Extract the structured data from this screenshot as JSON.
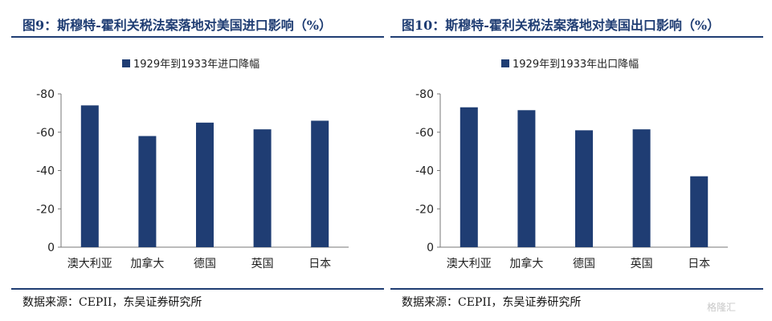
{
  "chart_data": [
    {
      "type": "bar",
      "title": "图9：斯穆特-霍利关税法案落地对美国进口影响（%）",
      "categories": [
        "澳大利亚",
        "加拿大",
        "德国",
        "英国",
        "日本"
      ],
      "series": [
        {
          "name": "1929年到1933年进口降幅",
          "values": [
            -74,
            -58,
            -65,
            -61.5,
            -66
          ]
        }
      ],
      "yticks": [
        "-80",
        "-60",
        "-40",
        "-20",
        "0"
      ],
      "ylim": [
        -80,
        0
      ],
      "y_inverted": true,
      "bar_color": "#1f3d73",
      "source": "数据来源：CEPII，东吴证券研究所"
    },
    {
      "type": "bar",
      "title": "图10：斯穆特-霍利关税法案落地对美国出口影响（%）",
      "categories": [
        "澳大利亚",
        "加拿大",
        "德国",
        "英国",
        "日本"
      ],
      "series": [
        {
          "name": "1929年到1933年出口降幅",
          "values": [
            -73,
            -71.5,
            -61,
            -61.5,
            -37
          ]
        }
      ],
      "yticks": [
        "-80",
        "-60",
        "-40",
        "-20",
        "0"
      ],
      "ylim": [
        -80,
        0
      ],
      "y_inverted": true,
      "bar_color": "#1f3d73",
      "source": "数据来源：CEPII，东吴证券研究所"
    }
  ],
  "watermark": "格隆汇"
}
